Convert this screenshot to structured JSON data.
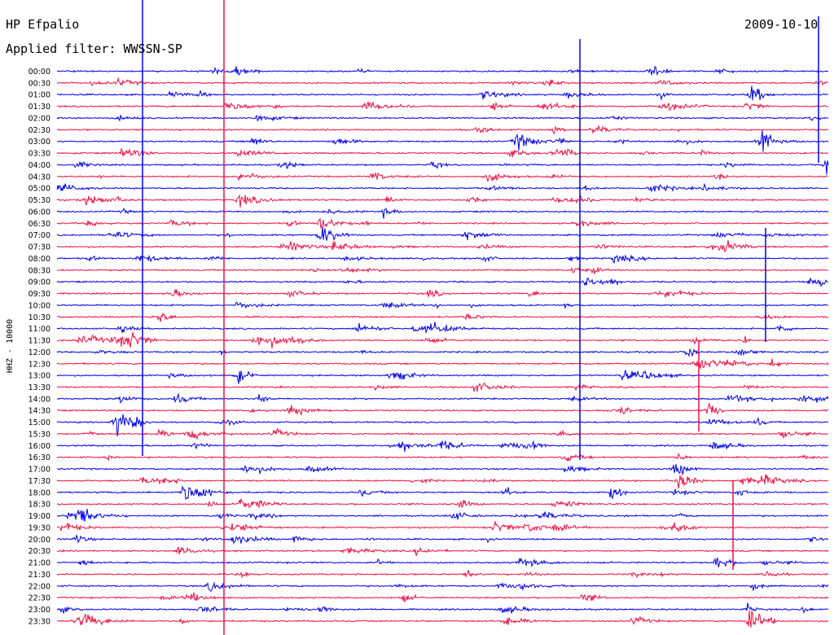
{
  "chart_data": {
    "type": "line",
    "title": "HP Efpalio",
    "date": "2009-10-10",
    "subtitle": "Applied filter: WWSSN-SP",
    "ylabel": "HHZ - 10000",
    "row_labels": [
      "00:00",
      "00:30",
      "01:00",
      "01:30",
      "02:00",
      "02:30",
      "03:00",
      "03:30",
      "04:00",
      "04:30",
      "05:00",
      "05:30",
      "06:00",
      "06:30",
      "07:00",
      "07:30",
      "08:00",
      "08:30",
      "09:00",
      "09:30",
      "10:00",
      "10:30",
      "11:00",
      "11:30",
      "12:00",
      "12:30",
      "13:00",
      "13:30",
      "14:00",
      "14:30",
      "15:00",
      "15:30",
      "16:00",
      "16:30",
      "17:00",
      "17:30",
      "18:00",
      "18:30",
      "19:00",
      "19:30",
      "20:00",
      "20:30",
      "21:00",
      "21:30",
      "22:00",
      "22:30",
      "23:00",
      "23:30"
    ],
    "colors": [
      "#0000ee",
      "#ee1144"
    ],
    "grid": false
  }
}
